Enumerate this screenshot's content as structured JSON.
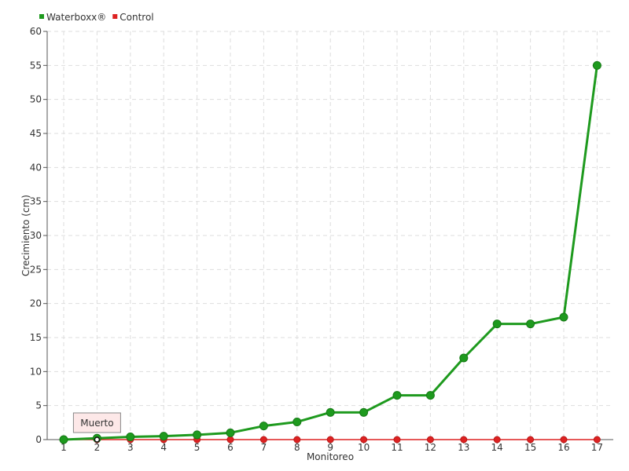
{
  "chart_data": {
    "type": "line",
    "xlabel": "Monitoreo",
    "ylabel": "Crecimiento (cm)",
    "ylim": [
      0,
      60
    ],
    "yticks": [
      0,
      5,
      10,
      15,
      20,
      25,
      30,
      35,
      40,
      45,
      50,
      55,
      60
    ],
    "categories": [
      "1",
      "2",
      "3",
      "4",
      "5",
      "6",
      "7",
      "8",
      "9",
      "10",
      "11",
      "12",
      "13",
      "14",
      "15",
      "16",
      "17"
    ],
    "grid": true,
    "legend_position": "top-left",
    "series": [
      {
        "name": "Waterboxx®",
        "color": "#1e9a1e",
        "values": [
          0,
          0.2,
          0.4,
          0.5,
          0.7,
          1.0,
          2.0,
          2.6,
          4.0,
          4.0,
          6.5,
          6.5,
          12.0,
          17.0,
          17.0,
          18.0,
          55.0
        ]
      },
      {
        "name": "Control",
        "color": "#dd2222",
        "values": [
          0,
          0,
          0,
          0,
          0,
          0,
          0,
          0,
          0,
          0,
          0,
          0,
          0,
          0,
          0,
          0,
          0
        ]
      }
    ],
    "annotations": [
      {
        "text": "Muerto",
        "category": "2",
        "value": 0
      }
    ]
  }
}
